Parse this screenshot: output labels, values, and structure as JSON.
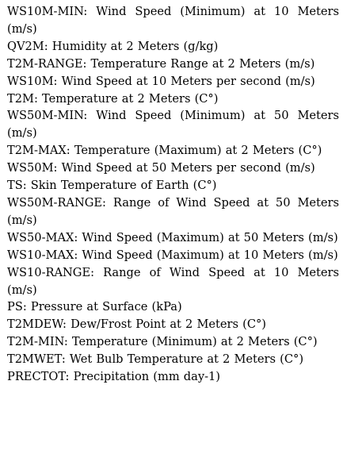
{
  "entries": [
    "WS10M-MIN: Wind Speed (Minimum) at 10 Meters (m/s)",
    "QV2M: Humidity at 2 Meters (g/kg)",
    "T2M-RANGE: Temperature Range at 2 Meters (m/s)",
    "WS10M: Wind Speed at 10 Meters per second (m/s)",
    "T2M: Temperature at 2 Meters (C°)",
    "WS50M-MIN: Wind Speed (Minimum) at 50 Meters (m/s)",
    "T2M-MAX: Temperature (Maximum) at 2 Meters (C°)",
    "WS50M: Wind Speed at 50 Meters per second (m/s)",
    "TS: Skin Temperature of Earth (C°)",
    "WS50M-RANGE: Range of Wind Speed at 50 Meters (m/s)",
    "WS50-MAX: Wind Speed (Maximum) at 50 Meters (m/s)",
    "WS10-MAX: Wind Speed (Maximum) at 10 Meters (m/s)",
    "WS10-RANGE: Range of Wind Speed at 10 Meters (m/s)",
    "PS: Pressure at Surface (kPa)",
    "T2MDEW: Dew/Frost Point at 2 Meters (C°)",
    "T2M-MIN: Temperature (Minimum) at 2 Meters (C°)",
    "T2MWET: Wet Bulb Temperature at 2 Meters (C°)",
    "PRECTOT: Precipitation (mm day-1)"
  ]
}
